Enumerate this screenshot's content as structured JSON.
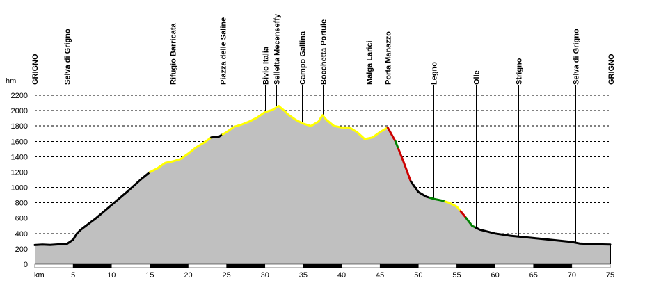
{
  "chart_data": {
    "type": "area",
    "title": "",
    "xlabel": "km",
    "ylabel": "hm",
    "xlim": [
      0,
      75
    ],
    "ylim": [
      0,
      2200
    ],
    "grid": true,
    "x_ticks": [
      5,
      10,
      15,
      20,
      25,
      30,
      35,
      40,
      45,
      50,
      55,
      60,
      65,
      70,
      75
    ],
    "y_ticks": [
      0,
      200,
      400,
      600,
      800,
      1000,
      1200,
      1400,
      1600,
      1800,
      2000,
      2200
    ],
    "fill_color": "#c0c0c0",
    "profile": [
      [
        0,
        250
      ],
      [
        1,
        255
      ],
      [
        2,
        252
      ],
      [
        3,
        258
      ],
      [
        4,
        262
      ],
      [
        4.2,
        265
      ],
      [
        5,
        320
      ],
      [
        5.5,
        400
      ],
      [
        6,
        450
      ],
      [
        8,
        600
      ],
      [
        10,
        770
      ],
      [
        12,
        940
      ],
      [
        14,
        1120
      ],
      [
        15,
        1200
      ],
      [
        16,
        1250
      ],
      [
        17,
        1320
      ],
      [
        18,
        1340
      ],
      [
        19,
        1370
      ],
      [
        20,
        1440
      ],
      [
        21,
        1520
      ],
      [
        22,
        1580
      ],
      [
        23,
        1650
      ],
      [
        24,
        1660
      ],
      [
        25,
        1720
      ],
      [
        26,
        1790
      ],
      [
        27,
        1820
      ],
      [
        28,
        1860
      ],
      [
        29,
        1910
      ],
      [
        30,
        1980
      ],
      [
        31,
        2010
      ],
      [
        31.8,
        2060
      ],
      [
        32.5,
        2000
      ],
      [
        33,
        1950
      ],
      [
        34,
        1880
      ],
      [
        35,
        1830
      ],
      [
        36,
        1800
      ],
      [
        37,
        1860
      ],
      [
        37.5,
        1940
      ],
      [
        38,
        1880
      ],
      [
        39,
        1800
      ],
      [
        40,
        1780
      ],
      [
        41,
        1780
      ],
      [
        42,
        1720
      ],
      [
        43,
        1630
      ],
      [
        44,
        1650
      ],
      [
        45,
        1720
      ],
      [
        46,
        1780
      ],
      [
        47,
        1600
      ],
      [
        48,
        1350
      ],
      [
        49,
        1080
      ],
      [
        50,
        940
      ],
      [
        51,
        880
      ],
      [
        52,
        850
      ],
      [
        53,
        830
      ],
      [
        54,
        800
      ],
      [
        55,
        750
      ],
      [
        56,
        630
      ],
      [
        57,
        500
      ],
      [
        58,
        450
      ],
      [
        60,
        400
      ],
      [
        62,
        370
      ],
      [
        65,
        340
      ],
      [
        68,
        310
      ],
      [
        70,
        290
      ],
      [
        71,
        270
      ],
      [
        73,
        260
      ],
      [
        75,
        255
      ]
    ],
    "segments": [
      {
        "from": 0,
        "to": 15,
        "color": "#000000"
      },
      {
        "from": 15,
        "to": 23,
        "color": "#ffff00"
      },
      {
        "from": 23,
        "to": 24.5,
        "color": "#000000"
      },
      {
        "from": 24.5,
        "to": 46,
        "color": "#ffff00"
      },
      {
        "from": 46,
        "to": 47,
        "color": "#cc0000"
      },
      {
        "from": 47,
        "to": 47.4,
        "color": "#008000"
      },
      {
        "from": 47.4,
        "to": 49,
        "color": "#cc0000"
      },
      {
        "from": 49,
        "to": 51.5,
        "color": "#000000"
      },
      {
        "from": 51.5,
        "to": 53.5,
        "color": "#008000"
      },
      {
        "from": 53.5,
        "to": 55.5,
        "color": "#ffff00"
      },
      {
        "from": 55.5,
        "to": 56.2,
        "color": "#cc0000"
      },
      {
        "from": 56.2,
        "to": 57.5,
        "color": "#008000"
      },
      {
        "from": 57.5,
        "to": 75,
        "color": "#000000"
      }
    ],
    "waypoints": [
      {
        "name": "GRIGNO",
        "km": 0,
        "at_axis": true
      },
      {
        "name": "Selva di Grigno",
        "km": 4.2
      },
      {
        "name": "Rifugio Barricata",
        "km": 18
      },
      {
        "name": "Piazza delle Saline",
        "km": 24.5
      },
      {
        "name": "Bivio Italia",
        "km": 30
      },
      {
        "name": "Selletta Mecenseffy",
        "km": 31.5
      },
      {
        "name": "Campo Gallina",
        "km": 34.8
      },
      {
        "name": "Bocchetta Portule",
        "km": 37.5
      },
      {
        "name": "Malga Larici",
        "km": 43.5
      },
      {
        "name": "Porta Manazzo",
        "km": 46
      },
      {
        "name": "Legno",
        "km": 52
      },
      {
        "name": "Olle",
        "km": 57.5
      },
      {
        "name": "Strigno",
        "km": 63
      },
      {
        "name": "Selva di Grigno",
        "km": 70.5
      },
      {
        "name": "GRIGNO",
        "km": 75,
        "at_axis": true
      }
    ]
  }
}
